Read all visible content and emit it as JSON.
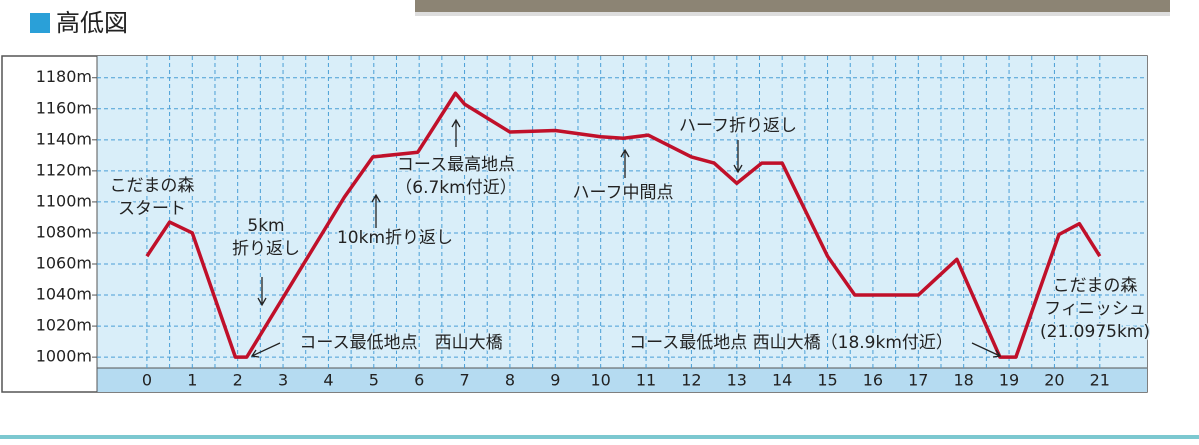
{
  "chart_data": {
    "type": "line",
    "title": "高低図",
    "x": [
      0,
      0.5,
      1.0,
      1.95,
      2.2,
      4.35,
      4.98,
      5.97,
      6.8,
      7.0,
      8.0,
      9.0,
      10.0,
      10.5,
      11.05,
      12.0,
      12.5,
      13.0,
      13.55,
      14.0,
      15.0,
      15.6,
      17.0,
      17.85,
      18.8,
      19.15,
      20.1,
      20.55,
      21.0
    ],
    "series": [
      {
        "color": "#c0102a",
        "values": [
          1065,
          1087,
          1080,
          1000,
          1000,
          1103,
          1129,
          1132,
          1170,
          1163,
          1145,
          1146,
          1142,
          1141,
          1143,
          1129,
          1125,
          1112,
          1125,
          1125,
          1065,
          1040,
          1040,
          1063,
          1000,
          1000,
          1079,
          1086,
          1065
        ]
      }
    ],
    "xlim": [
      -1.1,
      22.04
    ],
    "xticks": [
      0,
      1,
      2,
      3,
      4,
      5,
      6,
      7,
      8,
      9,
      10,
      11,
      12,
      13,
      14,
      15,
      16,
      17,
      18,
      19,
      20,
      21
    ],
    "ylim": [
      993,
      1194
    ],
    "yticks": [
      {
        "value": 1000,
        "label": "1000m"
      },
      {
        "value": 1020,
        "label": "1020m"
      },
      {
        "value": 1040,
        "label": "1040m"
      },
      {
        "value": 1060,
        "label": "1060m"
      },
      {
        "value": 1080,
        "label": "1080m"
      },
      {
        "value": 1100,
        "label": "1100m"
      },
      {
        "value": 1120,
        "label": "1120m"
      },
      {
        "value": 1140,
        "label": "1140m"
      },
      {
        "value": 1160,
        "label": "1160m"
      },
      {
        "value": 1180,
        "label": "1180m"
      }
    ],
    "grid": true,
    "annotations": [
      [
        "こだまの森",
        "スタート"
      ],
      [
        "5km",
        "折り返し"
      ],
      [
        "10km折り返し"
      ],
      [
        "コース最高地点",
        "（6.7km付近）"
      ],
      [
        "ハーフ中間点"
      ],
      [
        "ハーフ折り返し"
      ],
      [
        "コース最低地点　西山大橋"
      ],
      [
        "コース最低地点 西山大橋（18.9km付近）"
      ],
      [
        "こだまの森",
        "フィニッシュ",
        "(21.0975km)"
      ]
    ]
  }
}
